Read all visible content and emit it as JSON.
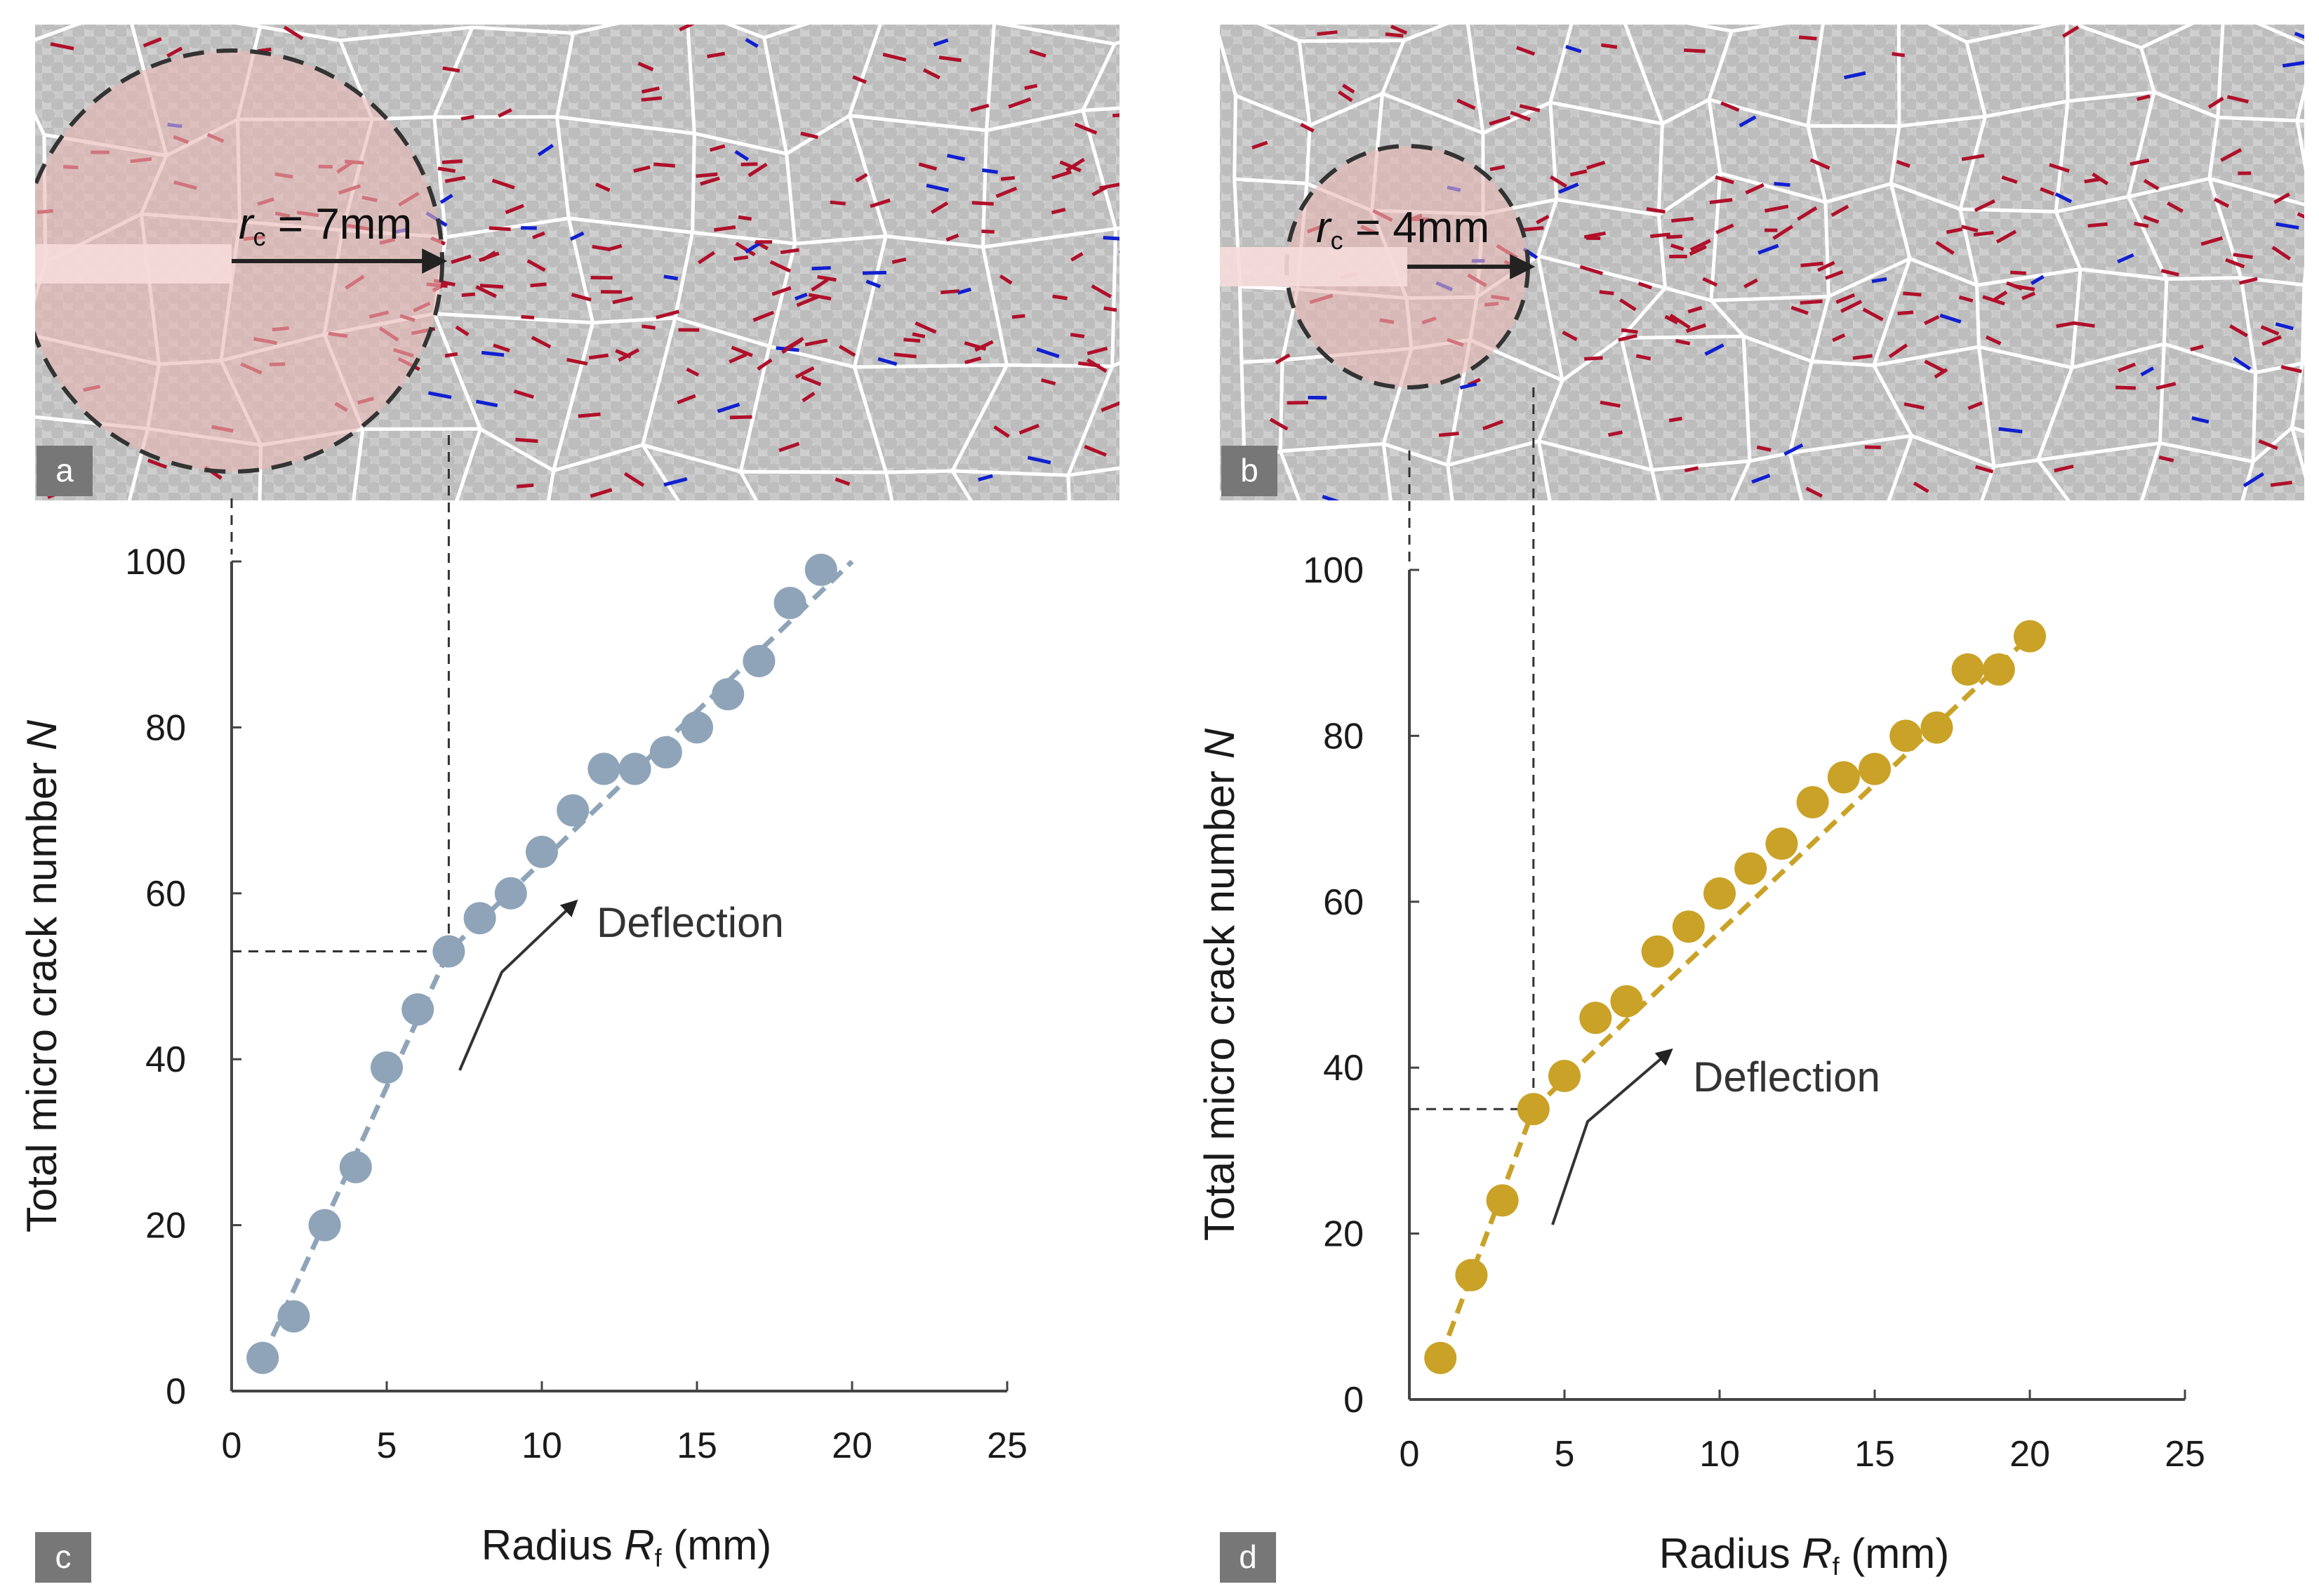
{
  "colors": {
    "grain": "#c4c4c4",
    "boundary": "#ffffff",
    "crack_tensile": "#b0102a",
    "crack_shear": "#1020d0",
    "zone_fill": "#e8b8b4",
    "series_a": "#8fa4b8",
    "series_b": "#c9a227",
    "label_bg": "#777777"
  },
  "panels": {
    "a": {
      "label": "a",
      "rc_symbol": "r",
      "rc_sub": "c",
      "rc_value": " = 7mm"
    },
    "b": {
      "label": "b",
      "rc_symbol": "r",
      "rc_sub": "c",
      "rc_value": " = 4mm"
    },
    "c": {
      "label": "c",
      "annotation": "Deflection",
      "ref_x": 7,
      "ref_y": 53
    },
    "d": {
      "label": "d",
      "annotation": "Deflection",
      "ref_x": 4,
      "ref_y": 35
    }
  },
  "chart_data": [
    {
      "type": "line",
      "panel": "c",
      "title": "",
      "xlabel_main": "Radius ",
      "xlabel_symbol": "R",
      "xlabel_sub": "f",
      "xlabel_unit": " (mm)",
      "ylabel_main": "Total micro crack number ",
      "ylabel_symbol": "N",
      "xlim": [
        0,
        25
      ],
      "ylim": [
        0,
        100
      ],
      "xticks": [
        "0",
        "5",
        "10",
        "15",
        "20",
        "25"
      ],
      "yticks": [
        "0",
        "20",
        "40",
        "60",
        "80",
        "100"
      ],
      "series": [
        {
          "name": "a",
          "x": [
            1,
            2,
            3,
            4,
            5,
            6,
            7,
            8,
            9,
            10,
            11,
            12,
            13,
            14,
            15,
            16,
            17,
            18,
            19
          ],
          "y": [
            4,
            9,
            20,
            27,
            39,
            46,
            53,
            57,
            60,
            65,
            70,
            75,
            75,
            77,
            80,
            84,
            88,
            95,
            99
          ]
        }
      ],
      "trend": [
        [
          1,
          4
        ],
        [
          7,
          53
        ],
        [
          20,
          100
        ]
      ]
    },
    {
      "type": "line",
      "panel": "d",
      "title": "",
      "xlabel_main": "Radius ",
      "xlabel_symbol": "R",
      "xlabel_sub": "f",
      "xlabel_unit": " (mm)",
      "ylabel_main": "Total micro crack number ",
      "ylabel_symbol": "N",
      "xlim": [
        0,
        25
      ],
      "ylim": [
        0,
        100
      ],
      "xticks": [
        "0",
        "5",
        "10",
        "15",
        "20",
        "25"
      ],
      "yticks": [
        "0",
        "20",
        "40",
        "60",
        "80",
        "100"
      ],
      "series": [
        {
          "name": "b",
          "x": [
            1,
            2,
            3,
            4,
            5,
            6,
            7,
            8,
            9,
            10,
            11,
            12,
            13,
            14,
            15,
            16,
            17,
            18,
            19,
            20
          ],
          "y": [
            5,
            15,
            24,
            35,
            39,
            46,
            48,
            54,
            57,
            61,
            64,
            67,
            72,
            75,
            76,
            80,
            81,
            88,
            88,
            92
          ]
        }
      ],
      "trend": [
        [
          1,
          5
        ],
        [
          4,
          35
        ],
        [
          20,
          92
        ]
      ]
    }
  ]
}
